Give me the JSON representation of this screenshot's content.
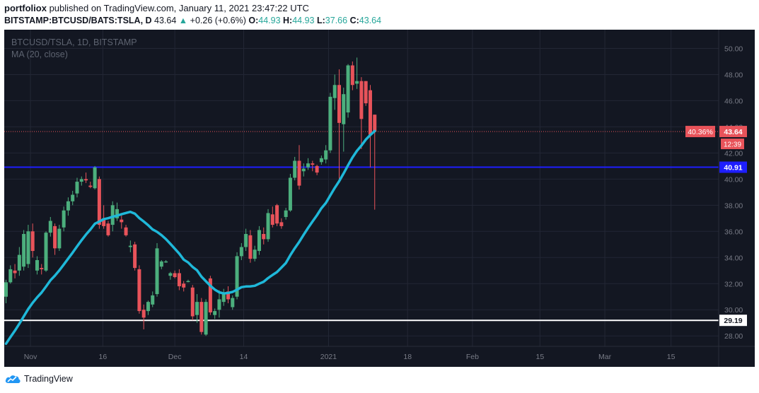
{
  "header": {
    "author": "portfoliox",
    "published_text": "published on TradingView.com, January 11, 2021 23:47:22 UTC"
  },
  "symbol_line": {
    "symbol": "BITSTAMP:BTCUSD/BATS:TSLA, D",
    "last": "43.64",
    "arrow": "▲",
    "change": "+0.26 (+0.6%)",
    "o_label": "O:",
    "o_value": "44.93",
    "h_label": "H:",
    "h_value": "44.93",
    "l_label": "L:",
    "l_value": "37.66",
    "c_label": "C:",
    "c_value": "43.64"
  },
  "footer": {
    "logo_text": "TradingView",
    "logo_icon": "tradingview-cloud-icon"
  },
  "chart_data": {
    "type": "candlestick",
    "overlay_title": "BTCUSD/TSLA, 1D, BITSTAMP",
    "indicator_label": "MA (20, close)",
    "ylim": [
      27.2,
      51.0
    ],
    "y_ticks": [
      "28.00",
      "30.00",
      "32.00",
      "34.00",
      "36.00",
      "38.00",
      "40.00",
      "42.00",
      "44.00",
      "46.00",
      "48.00",
      "50.00"
    ],
    "x_tick_labels": [
      "Nov",
      "16",
      "Dec",
      "14",
      "2021",
      "18",
      "Feb",
      "15",
      "Mar",
      "15"
    ],
    "horizontal_lines": [
      {
        "value": 40.91,
        "label": "40.91",
        "color": "#1e1eff"
      },
      {
        "value": 29.19,
        "label": "29.19",
        "color": "#ffffff"
      }
    ],
    "price_label": {
      "value": 43.64,
      "percent": "40.36%",
      "label": "43.64",
      "countdown": "12:39"
    },
    "colors": {
      "up": "#4caf7d",
      "down": "#e8535a",
      "ma": "#1fb8d9",
      "background": "#131722",
      "grid": "#232735"
    },
    "candles": [
      {
        "o": 31.0,
        "h": 32.3,
        "l": 30.5,
        "c": 32.1
      },
      {
        "o": 32.1,
        "h": 33.4,
        "l": 32.0,
        "c": 33.1
      },
      {
        "o": 33.0,
        "h": 33.5,
        "l": 32.4,
        "c": 32.8
      },
      {
        "o": 33.0,
        "h": 34.8,
        "l": 32.6,
        "c": 34.2
      },
      {
        "o": 33.3,
        "h": 36.1,
        "l": 33.0,
        "c": 35.8
      },
      {
        "o": 33.5,
        "h": 36.5,
        "l": 33.2,
        "c": 36.0
      },
      {
        "o": 36.0,
        "h": 36.6,
        "l": 34.0,
        "c": 34.5
      },
      {
        "o": 33.0,
        "h": 34.1,
        "l": 32.7,
        "c": 33.8
      },
      {
        "o": 33.2,
        "h": 33.5,
        "l": 32.7,
        "c": 33.1
      },
      {
        "o": 33.0,
        "h": 36.0,
        "l": 32.9,
        "c": 35.9
      },
      {
        "o": 35.9,
        "h": 37.1,
        "l": 35.6,
        "c": 36.8
      },
      {
        "o": 36.4,
        "h": 36.6,
        "l": 34.2,
        "c": 34.7
      },
      {
        "o": 34.7,
        "h": 36.5,
        "l": 34.5,
        "c": 36.2
      },
      {
        "o": 36.3,
        "h": 37.9,
        "l": 36.0,
        "c": 37.6
      },
      {
        "o": 37.6,
        "h": 38.6,
        "l": 37.2,
        "c": 38.3
      },
      {
        "o": 38.3,
        "h": 39.1,
        "l": 38.0,
        "c": 38.8
      },
      {
        "o": 38.9,
        "h": 40.1,
        "l": 38.6,
        "c": 39.8
      },
      {
        "o": 39.8,
        "h": 40.2,
        "l": 39.5,
        "c": 40.0
      },
      {
        "o": 40.0,
        "h": 40.5,
        "l": 39.7,
        "c": 39.9
      },
      {
        "o": 39.5,
        "h": 39.8,
        "l": 39.3,
        "c": 39.4
      },
      {
        "o": 39.3,
        "h": 41.0,
        "l": 39.2,
        "c": 40.9
      },
      {
        "o": 40.0,
        "h": 40.2,
        "l": 36.2,
        "c": 36.5
      },
      {
        "o": 37.0,
        "h": 38.0,
        "l": 36.2,
        "c": 36.4
      },
      {
        "o": 36.6,
        "h": 36.8,
        "l": 35.6,
        "c": 35.7
      },
      {
        "o": 36.5,
        "h": 38.3,
        "l": 36.0,
        "c": 38.0
      },
      {
        "o": 37.0,
        "h": 38.2,
        "l": 36.8,
        "c": 37.7
      },
      {
        "o": 36.9,
        "h": 37.2,
        "l": 36.2,
        "c": 36.7
      },
      {
        "o": 36.3,
        "h": 36.5,
        "l": 35.6,
        "c": 35.7
      },
      {
        "o": 34.8,
        "h": 35.3,
        "l": 34.4,
        "c": 34.9
      },
      {
        "o": 35.0,
        "h": 35.2,
        "l": 33.0,
        "c": 33.2
      },
      {
        "o": 33.1,
        "h": 33.4,
        "l": 29.7,
        "c": 29.9
      },
      {
        "o": 30.0,
        "h": 30.4,
        "l": 28.5,
        "c": 29.4
      },
      {
        "o": 29.9,
        "h": 30.7,
        "l": 29.6,
        "c": 30.6
      },
      {
        "o": 30.4,
        "h": 31.4,
        "l": 30.2,
        "c": 31.1
      },
      {
        "o": 31.2,
        "h": 35.1,
        "l": 31.0,
        "c": 34.7
      },
      {
        "o": 33.3,
        "h": 33.8,
        "l": 33.1,
        "c": 33.7
      },
      {
        "o": 33.7,
        "h": 33.8,
        "l": 33.6,
        "c": 33.7
      },
      {
        "o": 32.6,
        "h": 32.9,
        "l": 32.3,
        "c": 32.8
      },
      {
        "o": 32.8,
        "h": 33.0,
        "l": 32.4,
        "c": 32.5
      },
      {
        "o": 32.8,
        "h": 33.1,
        "l": 31.5,
        "c": 31.8
      },
      {
        "o": 32.0,
        "h": 32.2,
        "l": 31.4,
        "c": 31.7
      },
      {
        "o": 32.2,
        "h": 32.3,
        "l": 32.1,
        "c": 32.2
      },
      {
        "o": 31.7,
        "h": 31.9,
        "l": 29.2,
        "c": 29.5
      },
      {
        "o": 29.6,
        "h": 31.2,
        "l": 29.0,
        "c": 30.6
      },
      {
        "o": 30.6,
        "h": 30.9,
        "l": 28.1,
        "c": 28.3
      },
      {
        "o": 28.1,
        "h": 30.8,
        "l": 28.0,
        "c": 30.6
      },
      {
        "o": 32.4,
        "h": 32.6,
        "l": 29.6,
        "c": 29.8
      },
      {
        "o": 29.6,
        "h": 30.1,
        "l": 29.3,
        "c": 29.9
      },
      {
        "o": 30.0,
        "h": 31.5,
        "l": 29.4,
        "c": 30.8
      },
      {
        "o": 30.6,
        "h": 31.6,
        "l": 30.3,
        "c": 31.3
      },
      {
        "o": 31.4,
        "h": 31.8,
        "l": 30.5,
        "c": 30.8
      },
      {
        "o": 30.2,
        "h": 31.1,
        "l": 30.0,
        "c": 30.9
      },
      {
        "o": 31.0,
        "h": 34.4,
        "l": 30.8,
        "c": 34.1
      },
      {
        "o": 34.1,
        "h": 35.1,
        "l": 33.8,
        "c": 34.8
      },
      {
        "o": 34.8,
        "h": 36.2,
        "l": 34.5,
        "c": 35.8
      },
      {
        "o": 35.7,
        "h": 36.1,
        "l": 33.6,
        "c": 33.9
      },
      {
        "o": 33.9,
        "h": 34.9,
        "l": 33.7,
        "c": 34.6
      },
      {
        "o": 34.5,
        "h": 36.4,
        "l": 34.2,
        "c": 36.1
      },
      {
        "o": 35.8,
        "h": 36.3,
        "l": 35.0,
        "c": 35.4
      },
      {
        "o": 35.4,
        "h": 37.7,
        "l": 35.2,
        "c": 37.4
      },
      {
        "o": 37.3,
        "h": 37.9,
        "l": 36.3,
        "c": 36.5
      },
      {
        "o": 38.0,
        "h": 38.1,
        "l": 36.4,
        "c": 36.6
      },
      {
        "o": 36.7,
        "h": 37.0,
        "l": 36.2,
        "c": 36.4
      },
      {
        "o": 37.1,
        "h": 37.8,
        "l": 36.9,
        "c": 37.6
      },
      {
        "o": 37.6,
        "h": 40.4,
        "l": 37.5,
        "c": 40.1
      },
      {
        "o": 40.1,
        "h": 41.7,
        "l": 39.9,
        "c": 41.4
      },
      {
        "o": 41.4,
        "h": 42.6,
        "l": 39.2,
        "c": 39.5
      },
      {
        "o": 40.6,
        "h": 41.2,
        "l": 40.2,
        "c": 40.8
      },
      {
        "o": 40.9,
        "h": 41.6,
        "l": 40.7,
        "c": 41.2
      },
      {
        "o": 41.2,
        "h": 41.4,
        "l": 40.6,
        "c": 41.1
      },
      {
        "o": 41.0,
        "h": 41.1,
        "l": 40.3,
        "c": 40.5
      },
      {
        "o": 41.3,
        "h": 41.8,
        "l": 41.1,
        "c": 41.6
      },
      {
        "o": 41.5,
        "h": 42.6,
        "l": 41.2,
        "c": 42.2
      },
      {
        "o": 42.2,
        "h": 46.6,
        "l": 42.0,
        "c": 46.3
      },
      {
        "o": 46.2,
        "h": 48.0,
        "l": 45.3,
        "c": 47.2
      },
      {
        "o": 47.2,
        "h": 48.4,
        "l": 40.0,
        "c": 44.3
      },
      {
        "o": 44.2,
        "h": 47.0,
        "l": 42.1,
        "c": 46.5
      },
      {
        "o": 45.1,
        "h": 48.8,
        "l": 44.7,
        "c": 48.7
      },
      {
        "o": 48.7,
        "h": 49.0,
        "l": 46.8,
        "c": 47.2
      },
      {
        "o": 47.3,
        "h": 49.3,
        "l": 46.9,
        "c": 47.5
      },
      {
        "o": 47.5,
        "h": 47.8,
        "l": 42.3,
        "c": 44.6
      },
      {
        "o": 47.5,
        "h": 47.5,
        "l": 45.6,
        "c": 45.8
      },
      {
        "o": 46.8,
        "h": 47.2,
        "l": 40.9,
        "c": 43.4
      },
      {
        "o": 44.93,
        "h": 44.93,
        "l": 37.66,
        "c": 43.64
      }
    ]
  }
}
